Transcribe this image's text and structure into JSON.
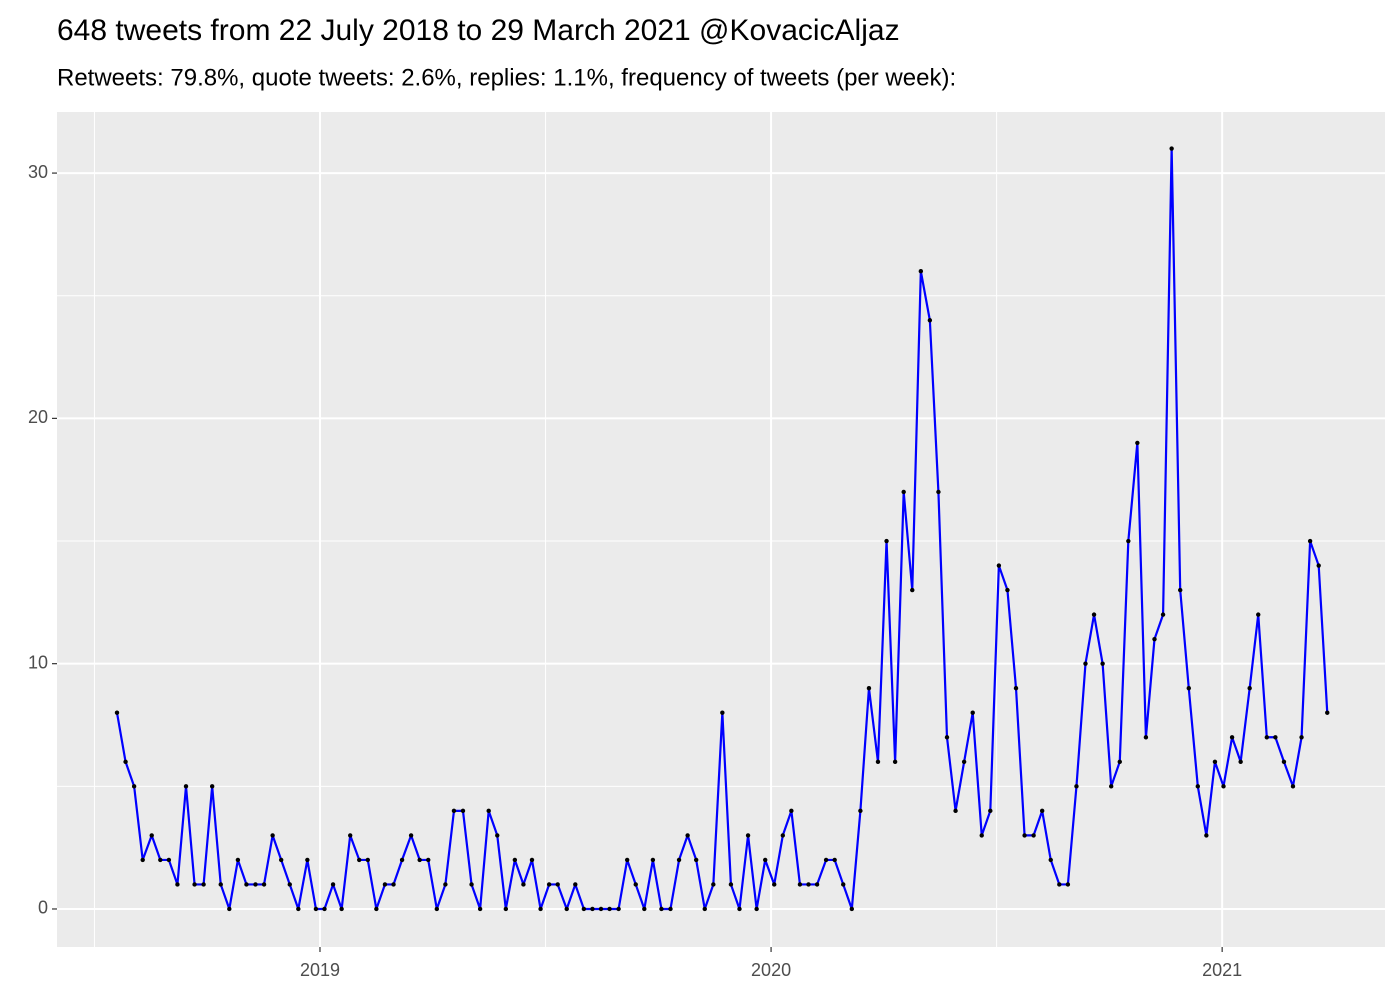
{
  "chart_data": {
    "type": "line",
    "title": "648 tweets from 22 July 2018 to 29 March 2021 @KovacicAljaz",
    "subtitle": "Retweets: 79.8%, quote tweets: 2.6%, replies: 1.1%, frequency of tweets (per week):",
    "x": [
      2018.55,
      2018.569,
      2018.588,
      2018.607,
      2018.627,
      2018.646,
      2018.665,
      2018.684,
      2018.703,
      2018.722,
      2018.742,
      2018.761,
      2018.78,
      2018.799,
      2018.818,
      2018.837,
      2018.857,
      2018.876,
      2018.895,
      2018.914,
      2018.933,
      2018.952,
      2018.972,
      2018.991,
      2019.01,
      2019.029,
      2019.048,
      2019.067,
      2019.087,
      2019.106,
      2019.125,
      2019.144,
      2019.163,
      2019.182,
      2019.202,
      2019.221,
      2019.24,
      2019.259,
      2019.278,
      2019.297,
      2019.317,
      2019.336,
      2019.355,
      2019.374,
      2019.393,
      2019.412,
      2019.432,
      2019.451,
      2019.47,
      2019.489,
      2019.508,
      2019.527,
      2019.547,
      2019.566,
      2019.585,
      2019.604,
      2019.623,
      2019.642,
      2019.662,
      2019.681,
      2019.7,
      2019.719,
      2019.738,
      2019.757,
      2019.777,
      2019.796,
      2019.815,
      2019.834,
      2019.853,
      2019.872,
      2019.892,
      2019.911,
      2019.93,
      2019.949,
      2019.968,
      2019.987,
      2020.007,
      2020.026,
      2020.045,
      2020.064,
      2020.083,
      2020.102,
      2020.122,
      2020.141,
      2020.16,
      2020.179,
      2020.198,
      2020.217,
      2020.237,
      2020.256,
      2020.275,
      2020.294,
      2020.313,
      2020.332,
      2020.352,
      2020.371,
      2020.39,
      2020.409,
      2020.428,
      2020.447,
      2020.467,
      2020.486,
      2020.505,
      2020.524,
      2020.543,
      2020.562,
      2020.582,
      2020.601,
      2020.62,
      2020.639,
      2020.658,
      2020.677,
      2020.697,
      2020.716,
      2020.735,
      2020.754,
      2020.773,
      2020.792,
      2020.812,
      2020.831,
      2020.85,
      2020.869,
      2020.888,
      2020.907,
      2020.926,
      2020.946,
      2020.965,
      2020.984,
      2021.003,
      2021.022,
      2021.041,
      2021.061,
      2021.08,
      2021.099,
      2021.118,
      2021.137,
      2021.157,
      2021.176,
      2021.195,
      2021.214,
      2021.233
    ],
    "values": [
      8,
      6,
      5,
      2,
      3,
      2,
      2,
      1,
      5,
      1,
      1,
      5,
      1,
      0,
      2,
      1,
      1,
      1,
      3,
      2,
      1,
      0,
      2,
      0,
      0,
      1,
      0,
      3,
      2,
      2,
      0,
      1,
      1,
      2,
      3,
      2,
      2,
      0,
      1,
      4,
      4,
      1,
      0,
      4,
      3,
      0,
      2,
      1,
      2,
      0,
      1,
      1,
      0,
      1,
      0,
      0,
      0,
      0,
      0,
      2,
      1,
      0,
      2,
      0,
      0,
      2,
      3,
      2,
      0,
      1,
      8,
      1,
      0,
      3,
      0,
      2,
      1,
      3,
      4,
      1,
      1,
      1,
      2,
      2,
      1,
      0,
      4,
      9,
      6,
      15,
      6,
      17,
      13,
      26,
      24,
      17,
      7,
      4,
      6,
      8,
      3,
      4,
      14,
      13,
      9,
      3,
      3,
      4,
      2,
      1,
      1,
      5,
      10,
      12,
      10,
      5,
      6,
      15,
      19,
      7,
      11,
      12,
      31,
      13,
      9,
      5,
      3,
      6,
      5,
      7,
      6,
      9,
      12,
      7,
      7,
      6,
      5,
      7,
      15,
      14,
      8
    ],
    "color": "#0000ff",
    "point_color": "#000000",
    "xlim": [
      2018.417,
      2021.361
    ],
    "ylim": [
      -1.55,
      32.49
    ],
    "xticks": [
      2019,
      2020,
      2021
    ],
    "yticks": [
      0,
      10,
      20,
      30
    ],
    "minor_xticks": [
      2018.5,
      2019.5,
      2020.5
    ],
    "minor_yticks": [
      5,
      15,
      25
    ],
    "grid": true,
    "panel_color": "#ebebeb"
  }
}
